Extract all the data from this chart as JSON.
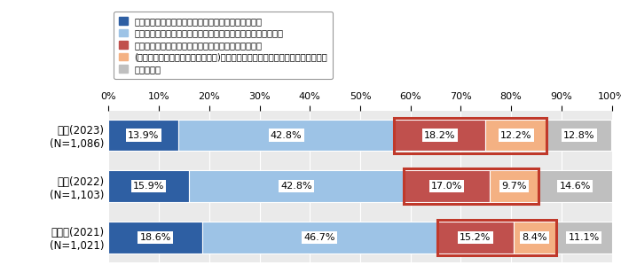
{
  "categories": [
    "今回(2023)\n(N=1,086)",
    "前回(2022)\n(N=1,103)",
    "前々回(2021)\n(N=1,021)"
  ],
  "series": [
    {
      "label": "連絡があれば就業時間外であっても対応したいと思う",
      "values": [
        13.9,
        15.9,
        18.6
      ],
      "color": "#2E5FA3"
    },
    {
      "label": "できれば対応したくないが、対応するのはやむを得ないと思う",
      "values": [
        42.8,
        42.8,
        46.7
      ],
      "color": "#9DC3E6"
    },
    {
      "label": "対応したくないし、連絡があっても対応しないと思う",
      "values": [
        18.2,
        17.0,
        15.2
      ],
      "color": "#C0504D"
    },
    {
      "label": "(電源や通知をオフにする等により)そもそも連絡を受信しないようにすると思う",
      "values": [
        12.2,
        9.7,
        8.4
      ],
      "color": "#F4B183"
    },
    {
      "label": "わからない",
      "values": [
        12.8,
        14.6,
        11.1
      ],
      "color": "#BFBFBF"
    }
  ],
  "bar_height": 0.62,
  "xlim": [
    0,
    100
  ],
  "xticks": [
    0,
    10,
    20,
    30,
    40,
    50,
    60,
    70,
    80,
    90,
    100
  ],
  "background_color": "#FFFFFF",
  "plot_bg_color": "#EAEAEA",
  "grid_color": "#FFFFFF",
  "highlight_color": "#C0392B",
  "text_color": "#000000",
  "legend_fontsize": 7.2,
  "tick_fontsize": 8,
  "label_fontsize": 8.5,
  "value_fontsize": 8,
  "value_box_color": "#FFFFFF"
}
